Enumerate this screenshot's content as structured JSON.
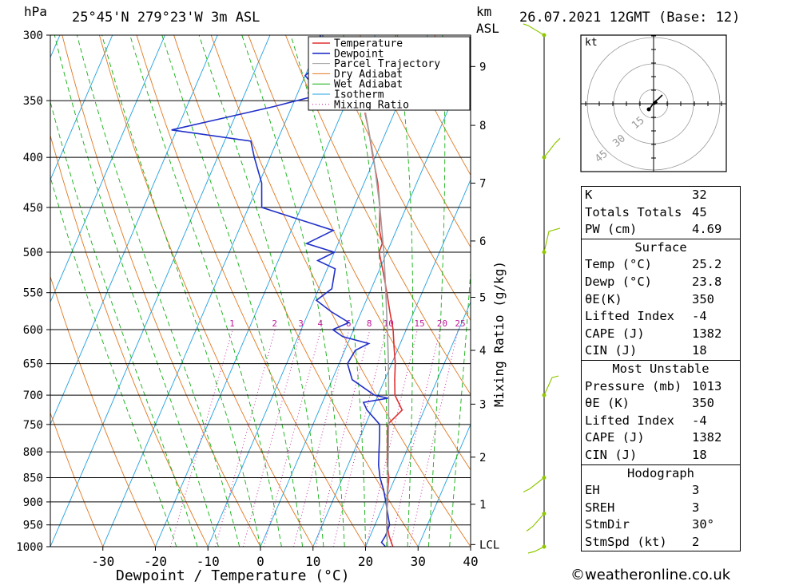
{
  "header": {
    "location": "25°45'N  279°23'W  3m  ASL",
    "datetime": "26.07.2021  12GMT  (Base: 12)",
    "p_unit": "hPa",
    "alt_unit_1": "km",
    "alt_unit_2": "ASL"
  },
  "legend": [
    "Temperature",
    "Dewpoint",
    "Parcel Trajectory",
    "Dry Adiabat",
    "Wet Adiabat",
    "Isotherm",
    "Mixing Ratio"
  ],
  "colors": {
    "temperature": "#e03030",
    "dewpoint": "#2030c8",
    "parcel": "#a0a0a0",
    "dry_adiabat": "#e07820",
    "wet_adiabat": "#10b010",
    "isotherm": "#20a0e0",
    "mixing_ratio": "#c0199a",
    "wind": "#90c800"
  },
  "chart_data": {
    "type": "line",
    "title": "",
    "xlabel": "Dewpoint / Temperature (°C)",
    "ylabel": "hPa",
    "right_label": "Mixing Ratio (g/kg)",
    "xlim": [
      -40,
      40
    ],
    "ylim": [
      1000,
      300
    ],
    "y_scale": "log",
    "x_ticks": [
      "-30",
      "-20",
      "-10",
      "0",
      "10",
      "20",
      "30",
      "40"
    ],
    "pressure_levels": [
      "300",
      "350",
      "400",
      "450",
      "500",
      "550",
      "600",
      "650",
      "700",
      "750",
      "800",
      "850",
      "900",
      "950",
      "1000"
    ],
    "km_ticks": [
      {
        "label": "9",
        "p": 323
      },
      {
        "label": "8",
        "p": 371
      },
      {
        "label": "7",
        "p": 425
      },
      {
        "label": "6",
        "p": 487
      },
      {
        "label": "5",
        "p": 556
      },
      {
        "label": "4",
        "p": 630
      },
      {
        "label": "3",
        "p": 715
      },
      {
        "label": "2",
        "p": 810
      },
      {
        "label": "1",
        "p": 905
      },
      {
        "label": "LCL",
        "p": 995
      }
    ],
    "mixing_ratio_labels": [
      "1",
      "2",
      "3",
      "4",
      "6",
      "8",
      "10",
      "15",
      "20",
      "25"
    ],
    "series": [
      {
        "name": "Temperature",
        "points": [
          [
            1000,
            25.2
          ],
          [
            975,
            23.6
          ],
          [
            950,
            22.3
          ],
          [
            925,
            21.3
          ],
          [
            900,
            20.5
          ],
          [
            875,
            19.6
          ],
          [
            850,
            18.8
          ],
          [
            825,
            17.5
          ],
          [
            800,
            16.4
          ],
          [
            775,
            15.3
          ],
          [
            750,
            14.2
          ],
          [
            725,
            15.8
          ],
          [
            700,
            13.2
          ],
          [
            675,
            11.9
          ],
          [
            650,
            10.7
          ],
          [
            625,
            9.1
          ],
          [
            600,
            7.5
          ],
          [
            575,
            5.4
          ],
          [
            550,
            3.3
          ],
          [
            525,
            1.0
          ],
          [
            500,
            -1.5
          ],
          [
            490,
            -1.6
          ],
          [
            475,
            -3.2
          ],
          [
            450,
            -5.0
          ],
          [
            425,
            -7.4
          ],
          [
            400,
            -10.4
          ],
          [
            375,
            -13.5
          ],
          [
            360,
            -15.6
          ]
        ]
      },
      {
        "name": "Dewpoint",
        "points": [
          [
            1000,
            23.8
          ],
          [
            990,
            22.7
          ],
          [
            975,
            22.9
          ],
          [
            950,
            22.8
          ],
          [
            925,
            21.5
          ],
          [
            900,
            20.2
          ],
          [
            875,
            18.8
          ],
          [
            850,
            17.1
          ],
          [
            825,
            15.8
          ],
          [
            800,
            14.8
          ],
          [
            775,
            13.8
          ],
          [
            750,
            12.7
          ],
          [
            725,
            9.1
          ],
          [
            712,
            7.8
          ],
          [
            705,
            12.1
          ],
          [
            700,
            9.3
          ],
          [
            675,
            3.8
          ],
          [
            650,
            1.6
          ],
          [
            630,
            2.0
          ],
          [
            620,
            4.0
          ],
          [
            610,
            -1.5
          ],
          [
            600,
            -4.0
          ],
          [
            590,
            -1.5
          ],
          [
            575,
            -5.8
          ],
          [
            560,
            -9.5
          ],
          [
            545,
            -7.5
          ],
          [
            520,
            -8.5
          ],
          [
            510,
            -12.5
          ],
          [
            500,
            -10.0
          ],
          [
            490,
            -16.0
          ],
          [
            475,
            -12.0
          ],
          [
            450,
            -27.5
          ],
          [
            425,
            -29.5
          ],
          [
            400,
            -33.0
          ],
          [
            385,
            -35.0
          ],
          [
            375,
            -51.0
          ],
          [
            355,
            -33.5
          ],
          [
            345,
            -25.5
          ],
          [
            330,
            -30.0
          ],
          [
            315,
            -27.5
          ],
          [
            300,
            -30.5
          ]
        ]
      },
      {
        "name": "Parcel Trajectory",
        "points": [
          [
            1000,
            24.2
          ],
          [
            975,
            23.2
          ],
          [
            950,
            22.2
          ],
          [
            925,
            21.3
          ],
          [
            900,
            20.4
          ],
          [
            850,
            18.6
          ],
          [
            800,
            16.6
          ],
          [
            750,
            14.4
          ],
          [
            700,
            12.0
          ],
          [
            650,
            9.4
          ],
          [
            600,
            6.4
          ],
          [
            550,
            3.1
          ],
          [
            500,
            -0.6
          ],
          [
            450,
            -5.0
          ],
          [
            400,
            -10.3
          ],
          [
            360,
            -15.5
          ]
        ]
      }
    ],
    "wind_barb_levels": [
      "300",
      "400",
      "500",
      "700",
      "850",
      "925",
      "1000"
    ]
  },
  "hodograph": {
    "unit": "kt",
    "ring_labels": [
      "15",
      "30",
      "45"
    ]
  },
  "indices": [
    {
      "rows": [
        {
          "label": "K",
          "value": "32"
        },
        {
          "label": "Totals Totals",
          "value": "45"
        },
        {
          "label": "PW (cm)",
          "value": "4.69"
        }
      ]
    },
    {
      "title": "Surface",
      "rows": [
        {
          "label": "Temp (°C)",
          "value": "25.2"
        },
        {
          "label": "Dewp (°C)",
          "value": "23.8"
        },
        {
          "label": "θE(K)",
          "value": "350"
        },
        {
          "label": "Lifted Index",
          "value": "-4"
        },
        {
          "label": "CAPE (J)",
          "value": "1382"
        },
        {
          "label": "CIN (J)",
          "value": "18"
        }
      ]
    },
    {
      "title": "Most Unstable",
      "rows": [
        {
          "label": "Pressure (mb)",
          "value": "1013"
        },
        {
          "label": "θE (K)",
          "value": "350"
        },
        {
          "label": "Lifted Index",
          "value": "-4"
        },
        {
          "label": "CAPE (J)",
          "value": "1382"
        },
        {
          "label": "CIN (J)",
          "value": "18"
        }
      ]
    },
    {
      "title": "Hodograph",
      "rows": [
        {
          "label": "EH",
          "value": "3"
        },
        {
          "label": "SREH",
          "value": "3"
        },
        {
          "label": "StmDir",
          "value": "30°"
        },
        {
          "label": "StmSpd (kt)",
          "value": "2"
        }
      ]
    }
  ],
  "credit": "©weatheronline.co.uk"
}
